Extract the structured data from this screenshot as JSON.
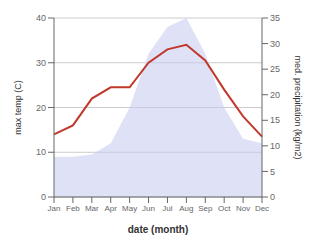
{
  "chart_data": {
    "type": "combo",
    "xlabel": "date (month)",
    "ylabel": "max temp (C)",
    "y2label": "med. precipitation (kg/m2)",
    "categories": [
      "Jan",
      "Feb",
      "Mar",
      "Apr",
      "May",
      "Jun",
      "Jul",
      "Aug",
      "Sep",
      "Oct",
      "Nov",
      "Dec"
    ],
    "series": [
      {
        "type": "area",
        "color": "#c5caf0",
        "values": [
          9,
          9,
          9.5,
          12,
          20,
          32,
          38,
          40,
          32,
          20,
          13,
          12
        ]
      },
      {
        "type": "line",
        "color": "#c0392b",
        "values": [
          14,
          16,
          22,
          24.5,
          24.5,
          30,
          33,
          34,
          30.5,
          24,
          18,
          13.5
        ]
      }
    ],
    "ylim": [
      0,
      40
    ],
    "yticks": [
      0,
      10,
      20,
      30,
      40
    ],
    "y2lim": [
      0,
      35
    ],
    "y2ticks": [
      0,
      5,
      10,
      15,
      20,
      25,
      30,
      35
    ],
    "grid": true
  }
}
